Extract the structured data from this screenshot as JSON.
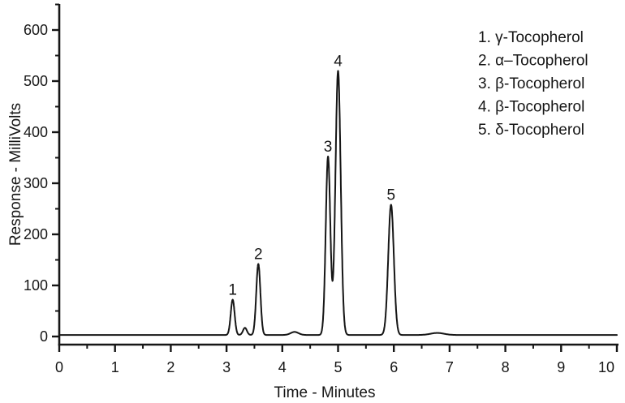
{
  "figure": {
    "background": "#ffffff",
    "ink_color": "#161616"
  },
  "chart_data": {
    "type": "line",
    "title": "",
    "xlabel": "Time - Minutes",
    "ylabel": "Response - MilliVolts",
    "xlim": [
      0,
      10
    ],
    "ylim": [
      0,
      650
    ],
    "x_major_ticks": [
      0,
      1,
      2,
      3,
      4,
      5,
      6,
      7,
      8,
      9,
      10
    ],
    "x_minor_tick_step": 0.5,
    "y_major_ticks": [
      0,
      100,
      200,
      300,
      400,
      500,
      600
    ],
    "y_minor_tick_step": 50,
    "grid": false,
    "legend_position": "top-right",
    "line_color": "#161616",
    "baseline_mv": 3,
    "peaks": [
      {
        "label": "1",
        "retention_time_min": 3.11,
        "apex_mv": 72,
        "sigma_min": 0.035,
        "compound": "γ-Tocopherol"
      },
      {
        "label": "2",
        "retention_time_min": 3.57,
        "apex_mv": 142,
        "sigma_min": 0.037,
        "compound": "α–Tocopherol"
      },
      {
        "label": "3",
        "retention_time_min": 4.82,
        "apex_mv": 352,
        "sigma_min": 0.041,
        "compound": "β-Tocopherol"
      },
      {
        "label": "4",
        "retention_time_min": 5.0,
        "apex_mv": 520,
        "sigma_min": 0.047,
        "compound": "β-Tocopherol"
      },
      {
        "label": "5",
        "retention_time_min": 5.95,
        "apex_mv": 258,
        "sigma_min": 0.05,
        "compound": "δ-Tocopherol"
      }
    ],
    "unlabeled_bumps": [
      {
        "retention_time_min": 3.33,
        "amplitude_mv": 14,
        "sigma_min": 0.035
      },
      {
        "retention_time_min": 4.22,
        "amplitude_mv": 6,
        "sigma_min": 0.07
      },
      {
        "retention_time_min": 6.78,
        "amplitude_mv": 4,
        "sigma_min": 0.12
      }
    ],
    "legend_items": [
      "1. γ-Tocopherol",
      "2. α–Tocopherol",
      "3. β-Tocopherol",
      "4. β-Tocopherol",
      "5. δ-Tocopherol"
    ]
  }
}
